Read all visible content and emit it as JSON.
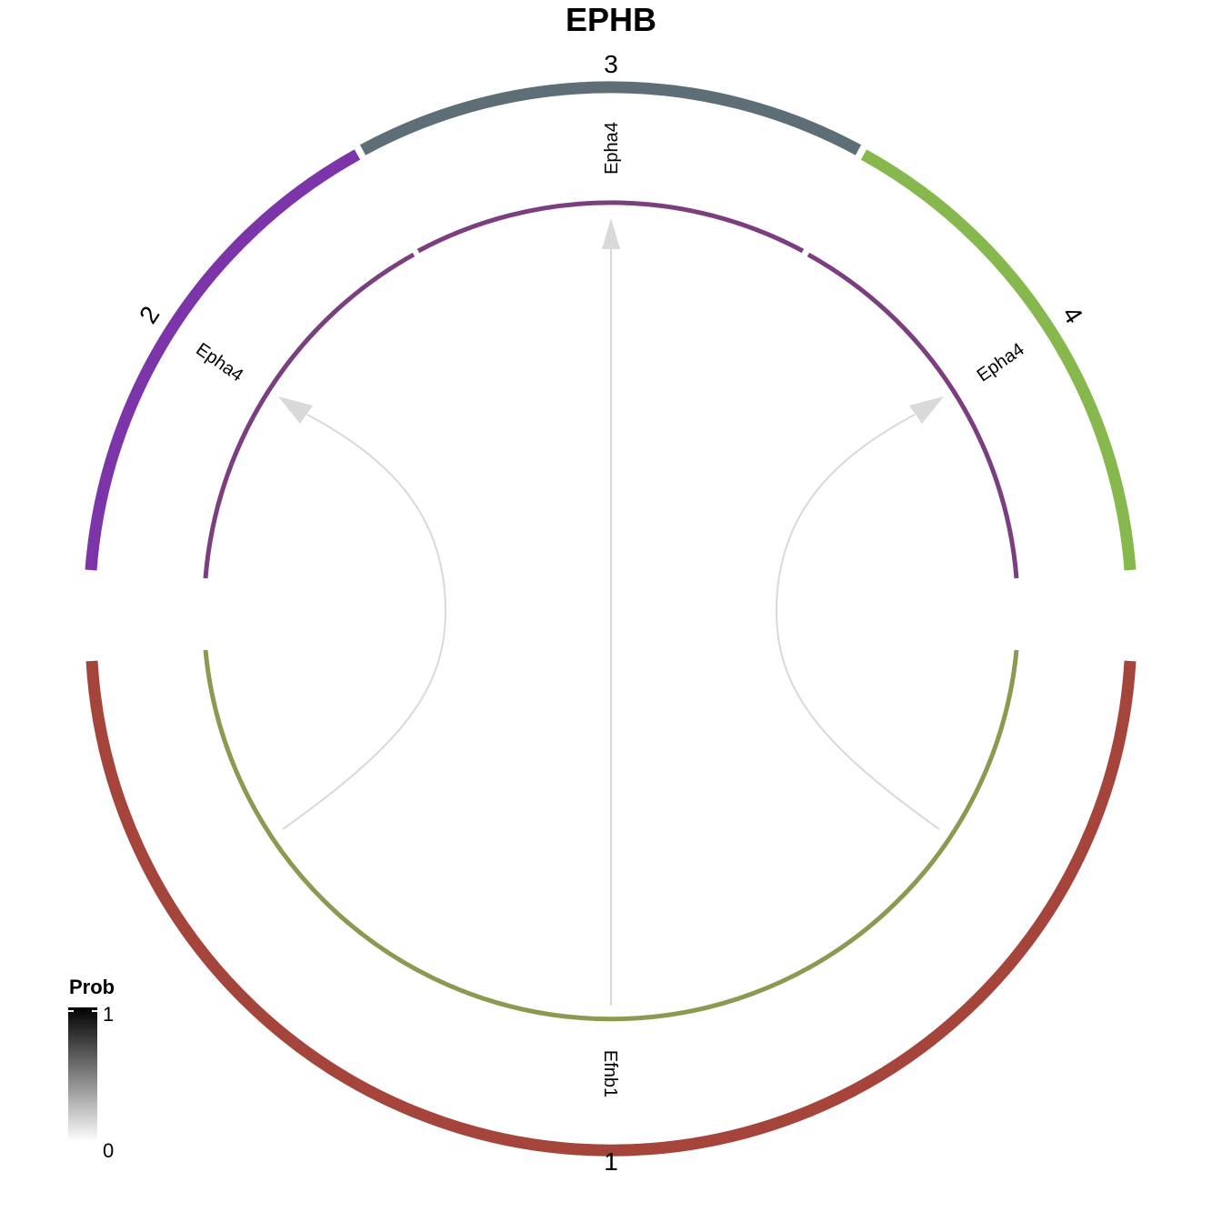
{
  "title": "EPHB",
  "groups": [
    {
      "label": "1",
      "color": "#A5443A"
    },
    {
      "label": "2",
      "color": "#7B35A8"
    },
    {
      "label": "3",
      "color": "#5E6E76"
    },
    {
      "label": "4",
      "color": "#86B84E"
    }
  ],
  "genes": {
    "receiver_1": "Efnb1",
    "receiver_2": "Epha4",
    "receiver_3": "Epha4",
    "receiver_4": "Epha4"
  },
  "track_colors": {
    "ligand": "#8A9A50",
    "receptor": "#7B3E7E"
  },
  "links": [
    {
      "from": "1",
      "to": "2"
    },
    {
      "from": "1",
      "to": "3"
    },
    {
      "from": "1",
      "to": "4"
    }
  ],
  "link_color": "#D9D9D9",
  "legend": {
    "title": "Prob",
    "max_label": "1",
    "min_label": "0",
    "gradient": [
      "#FFFFFF",
      "#000000"
    ]
  }
}
